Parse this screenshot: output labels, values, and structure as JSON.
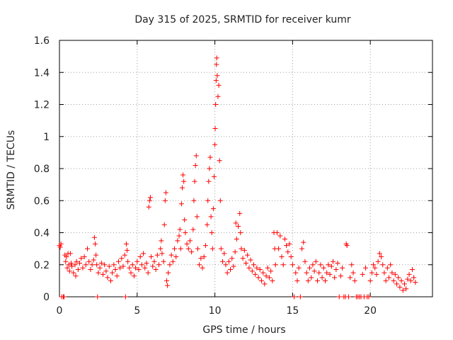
{
  "chart_data": {
    "type": "scatter",
    "title": "Day 315 of 2025, SRMTID for receiver kumr",
    "xlabel": "GPS time / hours",
    "ylabel": "SRMTID / TECUs",
    "xlim": [
      0,
      24
    ],
    "ylim": [
      0,
      1.6
    ],
    "x_ticks": [
      0,
      5,
      10,
      15,
      20
    ],
    "y_ticks": [
      0,
      0.2,
      0.4,
      0.6,
      0.8,
      1,
      1.2,
      1.4,
      1.6
    ],
    "x_tick_labels": [
      "0",
      "5",
      "10",
      "15",
      "20"
    ],
    "y_tick_labels": [
      "0",
      "0.2",
      "0.4",
      "0.6",
      "0.8",
      "1",
      "1.2",
      "1.4",
      "1.6"
    ],
    "grid": true,
    "marker": "+",
    "series": [
      {
        "name": "SRMTID",
        "color": "#ff0000",
        "points": [
          [
            0.0,
            0.32
          ],
          [
            0.05,
            0.31
          ],
          [
            0.1,
            0.33
          ],
          [
            0.15,
            0.0
          ],
          [
            0.25,
            0.0
          ],
          [
            0.3,
            0.0
          ],
          [
            0.35,
            0.26
          ],
          [
            0.4,
            0.22
          ],
          [
            0.45,
            0.25
          ],
          [
            0.5,
            0.18
          ],
          [
            0.55,
            0.27
          ],
          [
            0.6,
            0.2
          ],
          [
            0.65,
            0.16
          ],
          [
            0.7,
            0.27
          ],
          [
            0.75,
            0.21
          ],
          [
            0.8,
            0.19
          ],
          [
            0.9,
            0.15
          ],
          [
            1.0,
            0.2
          ],
          [
            1.05,
            0.13
          ],
          [
            1.1,
            0.22
          ],
          [
            1.2,
            0.17
          ],
          [
            1.3,
            0.21
          ],
          [
            1.4,
            0.24
          ],
          [
            1.5,
            0.18
          ],
          [
            1.6,
            0.25
          ],
          [
            1.7,
            0.2
          ],
          [
            1.8,
            0.3
          ],
          [
            1.9,
            0.22
          ],
          [
            2.0,
            0.17
          ],
          [
            2.1,
            0.2
          ],
          [
            2.2,
            0.23
          ],
          [
            2.25,
            0.37
          ],
          [
            2.3,
            0.33
          ],
          [
            2.35,
            0.26
          ],
          [
            2.4,
            0.2
          ],
          [
            2.45,
            0.0
          ],
          [
            2.5,
            0.15
          ],
          [
            2.6,
            0.18
          ],
          [
            2.7,
            0.21
          ],
          [
            2.8,
            0.14
          ],
          [
            2.9,
            0.2
          ],
          [
            3.0,
            0.16
          ],
          [
            3.1,
            0.12
          ],
          [
            3.2,
            0.19
          ],
          [
            3.3,
            0.1
          ],
          [
            3.4,
            0.15
          ],
          [
            3.5,
            0.2
          ],
          [
            3.6,
            0.17
          ],
          [
            3.7,
            0.13
          ],
          [
            3.8,
            0.22
          ],
          [
            3.9,
            0.18
          ],
          [
            4.0,
            0.24
          ],
          [
            4.1,
            0.19
          ],
          [
            4.2,
            0.26
          ],
          [
            4.25,
            0.0
          ],
          [
            4.3,
            0.33
          ],
          [
            4.35,
            0.29
          ],
          [
            4.4,
            0.22
          ],
          [
            4.5,
            0.18
          ],
          [
            4.6,
            0.15
          ],
          [
            4.7,
            0.2
          ],
          [
            4.8,
            0.13
          ],
          [
            4.9,
            0.18
          ],
          [
            5.0,
            0.22
          ],
          [
            5.1,
            0.17
          ],
          [
            5.2,
            0.25
          ],
          [
            5.3,
            0.2
          ],
          [
            5.4,
            0.27
          ],
          [
            5.5,
            0.18
          ],
          [
            5.6,
            0.21
          ],
          [
            5.7,
            0.15
          ],
          [
            5.75,
            0.56
          ],
          [
            5.8,
            0.6
          ],
          [
            5.85,
            0.62
          ],
          [
            5.9,
            0.25
          ],
          [
            6.0,
            0.19
          ],
          [
            6.1,
            0.22
          ],
          [
            6.2,
            0.17
          ],
          [
            6.3,
            0.26
          ],
          [
            6.4,
            0.2
          ],
          [
            6.5,
            0.3
          ],
          [
            6.55,
            0.35
          ],
          [
            6.6,
            0.27
          ],
          [
            6.7,
            0.22
          ],
          [
            6.75,
            0.45
          ],
          [
            6.8,
            0.6
          ],
          [
            6.85,
            0.65
          ],
          [
            6.9,
            0.1
          ],
          [
            6.95,
            0.07
          ],
          [
            7.0,
            0.15
          ],
          [
            7.1,
            0.2
          ],
          [
            7.2,
            0.26
          ],
          [
            7.3,
            0.22
          ],
          [
            7.4,
            0.3
          ],
          [
            7.5,
            0.25
          ],
          [
            7.6,
            0.35
          ],
          [
            7.7,
            0.38
          ],
          [
            7.75,
            0.42
          ],
          [
            7.8,
            0.3
          ],
          [
            7.85,
            0.58
          ],
          [
            7.9,
            0.68
          ],
          [
            7.95,
            0.76
          ],
          [
            8.0,
            0.72
          ],
          [
            8.05,
            0.48
          ],
          [
            8.1,
            0.4
          ],
          [
            8.2,
            0.33
          ],
          [
            8.3,
            0.3
          ],
          [
            8.4,
            0.35
          ],
          [
            8.5,
            0.28
          ],
          [
            8.6,
            0.42
          ],
          [
            8.65,
            0.6
          ],
          [
            8.7,
            0.72
          ],
          [
            8.75,
            0.82
          ],
          [
            8.8,
            0.88
          ],
          [
            8.85,
            0.5
          ],
          [
            8.9,
            0.3
          ],
          [
            9.0,
            0.2
          ],
          [
            9.1,
            0.24
          ],
          [
            9.2,
            0.18
          ],
          [
            9.3,
            0.25
          ],
          [
            9.4,
            0.32
          ],
          [
            9.5,
            0.45
          ],
          [
            9.55,
            0.6
          ],
          [
            9.6,
            0.72
          ],
          [
            9.65,
            0.8
          ],
          [
            9.7,
            0.87
          ],
          [
            9.75,
            0.5
          ],
          [
            9.8,
            0.4
          ],
          [
            9.85,
            0.3
          ],
          [
            9.9,
            0.55
          ],
          [
            9.95,
            0.75
          ],
          [
            10.0,
            0.95
          ],
          [
            10.02,
            1.05
          ],
          [
            10.05,
            1.2
          ],
          [
            10.08,
            1.35
          ],
          [
            10.1,
            1.45
          ],
          [
            10.12,
            1.49
          ],
          [
            10.15,
            1.38
          ],
          [
            10.2,
            1.25
          ],
          [
            10.25,
            1.32
          ],
          [
            10.3,
            0.85
          ],
          [
            10.35,
            0.6
          ],
          [
            10.4,
            0.3
          ],
          [
            10.5,
            0.22
          ],
          [
            10.6,
            0.27
          ],
          [
            10.7,
            0.2
          ],
          [
            10.8,
            0.15
          ],
          [
            10.9,
            0.22
          ],
          [
            11.0,
            0.17
          ],
          [
            11.1,
            0.24
          ],
          [
            11.2,
            0.19
          ],
          [
            11.3,
            0.28
          ],
          [
            11.35,
            0.46
          ],
          [
            11.4,
            0.36
          ],
          [
            11.5,
            0.44
          ],
          [
            11.6,
            0.52
          ],
          [
            11.65,
            0.4
          ],
          [
            11.7,
            0.3
          ],
          [
            11.8,
            0.24
          ],
          [
            11.9,
            0.29
          ],
          [
            12.0,
            0.21
          ],
          [
            12.1,
            0.26
          ],
          [
            12.2,
            0.18
          ],
          [
            12.3,
            0.23
          ],
          [
            12.4,
            0.16
          ],
          [
            12.5,
            0.2
          ],
          [
            12.6,
            0.14
          ],
          [
            12.7,
            0.18
          ],
          [
            12.8,
            0.12
          ],
          [
            12.9,
            0.17
          ],
          [
            13.0,
            0.1
          ],
          [
            13.1,
            0.15
          ],
          [
            13.2,
            0.08
          ],
          [
            13.3,
            0.13
          ],
          [
            13.4,
            0.18
          ],
          [
            13.5,
            0.12
          ],
          [
            13.6,
            0.16
          ],
          [
            13.7,
            0.1
          ],
          [
            13.8,
            0.4
          ],
          [
            13.85,
            0.3
          ],
          [
            13.9,
            0.2
          ],
          [
            14.0,
            0.4
          ],
          [
            14.1,
            0.3
          ],
          [
            14.2,
            0.38
          ],
          [
            14.3,
            0.25
          ],
          [
            14.4,
            0.2
          ],
          [
            14.5,
            0.36
          ],
          [
            14.6,
            0.32
          ],
          [
            14.7,
            0.28
          ],
          [
            14.8,
            0.33
          ],
          [
            14.9,
            0.25
          ],
          [
            15.0,
            0.2
          ],
          [
            15.1,
            0.0
          ],
          [
            15.2,
            0.15
          ],
          [
            15.3,
            0.1
          ],
          [
            15.4,
            0.18
          ],
          [
            15.5,
            0.0
          ],
          [
            15.6,
            0.3
          ],
          [
            15.7,
            0.34
          ],
          [
            15.8,
            0.22
          ],
          [
            15.9,
            0.15
          ],
          [
            16.0,
            0.1
          ],
          [
            16.1,
            0.18
          ],
          [
            16.2,
            0.12
          ],
          [
            16.3,
            0.2
          ],
          [
            16.4,
            0.16
          ],
          [
            16.5,
            0.22
          ],
          [
            16.6,
            0.1
          ],
          [
            16.7,
            0.15
          ],
          [
            16.8,
            0.2
          ],
          [
            16.9,
            0.12
          ],
          [
            17.0,
            0.18
          ],
          [
            17.1,
            0.1
          ],
          [
            17.2,
            0.15
          ],
          [
            17.3,
            0.2
          ],
          [
            17.4,
            0.14
          ],
          [
            17.5,
            0.19
          ],
          [
            17.6,
            0.22
          ],
          [
            17.7,
            0.12
          ],
          [
            17.8,
            0.17
          ],
          [
            17.9,
            0.21
          ],
          [
            18.0,
            0.0
          ],
          [
            18.1,
            0.13
          ],
          [
            18.2,
            0.18
          ],
          [
            18.3,
            0.0
          ],
          [
            18.4,
            0.0
          ],
          [
            18.45,
            0.33
          ],
          [
            18.5,
            0.32
          ],
          [
            18.6,
            0.0
          ],
          [
            18.7,
            0.12
          ],
          [
            18.8,
            0.2
          ],
          [
            18.9,
            0.15
          ],
          [
            19.0,
            0.1
          ],
          [
            19.1,
            0.0
          ],
          [
            19.2,
            0.0
          ],
          [
            19.3,
            0.0
          ],
          [
            19.4,
            0.0
          ],
          [
            19.5,
            0.14
          ],
          [
            19.6,
            0.0
          ],
          [
            19.7,
            0.18
          ],
          [
            19.8,
            0.0
          ],
          [
            19.9,
            0.0
          ],
          [
            20.0,
            0.1
          ],
          [
            20.1,
            0.15
          ],
          [
            20.2,
            0.2
          ],
          [
            20.3,
            0.18
          ],
          [
            20.4,
            0.14
          ],
          [
            20.5,
            0.22
          ],
          [
            20.6,
            0.27
          ],
          [
            20.7,
            0.25
          ],
          [
            20.8,
            0.2
          ],
          [
            20.9,
            0.15
          ],
          [
            21.0,
            0.1
          ],
          [
            21.1,
            0.18
          ],
          [
            21.2,
            0.12
          ],
          [
            21.3,
            0.2
          ],
          [
            21.4,
            0.15
          ],
          [
            21.5,
            0.1
          ],
          [
            21.6,
            0.14
          ],
          [
            21.7,
            0.08
          ],
          [
            21.8,
            0.12
          ],
          [
            21.9,
            0.06
          ],
          [
            22.0,
            0.1
          ],
          [
            22.1,
            0.04
          ],
          [
            22.2,
            0.08
          ],
          [
            22.3,
            0.05
          ],
          [
            22.4,
            0.11
          ],
          [
            22.5,
            0.14
          ],
          [
            22.6,
            0.1
          ],
          [
            22.7,
            0.17
          ],
          [
            22.8,
            0.12
          ],
          [
            22.9,
            0.09
          ]
        ]
      }
    ]
  }
}
